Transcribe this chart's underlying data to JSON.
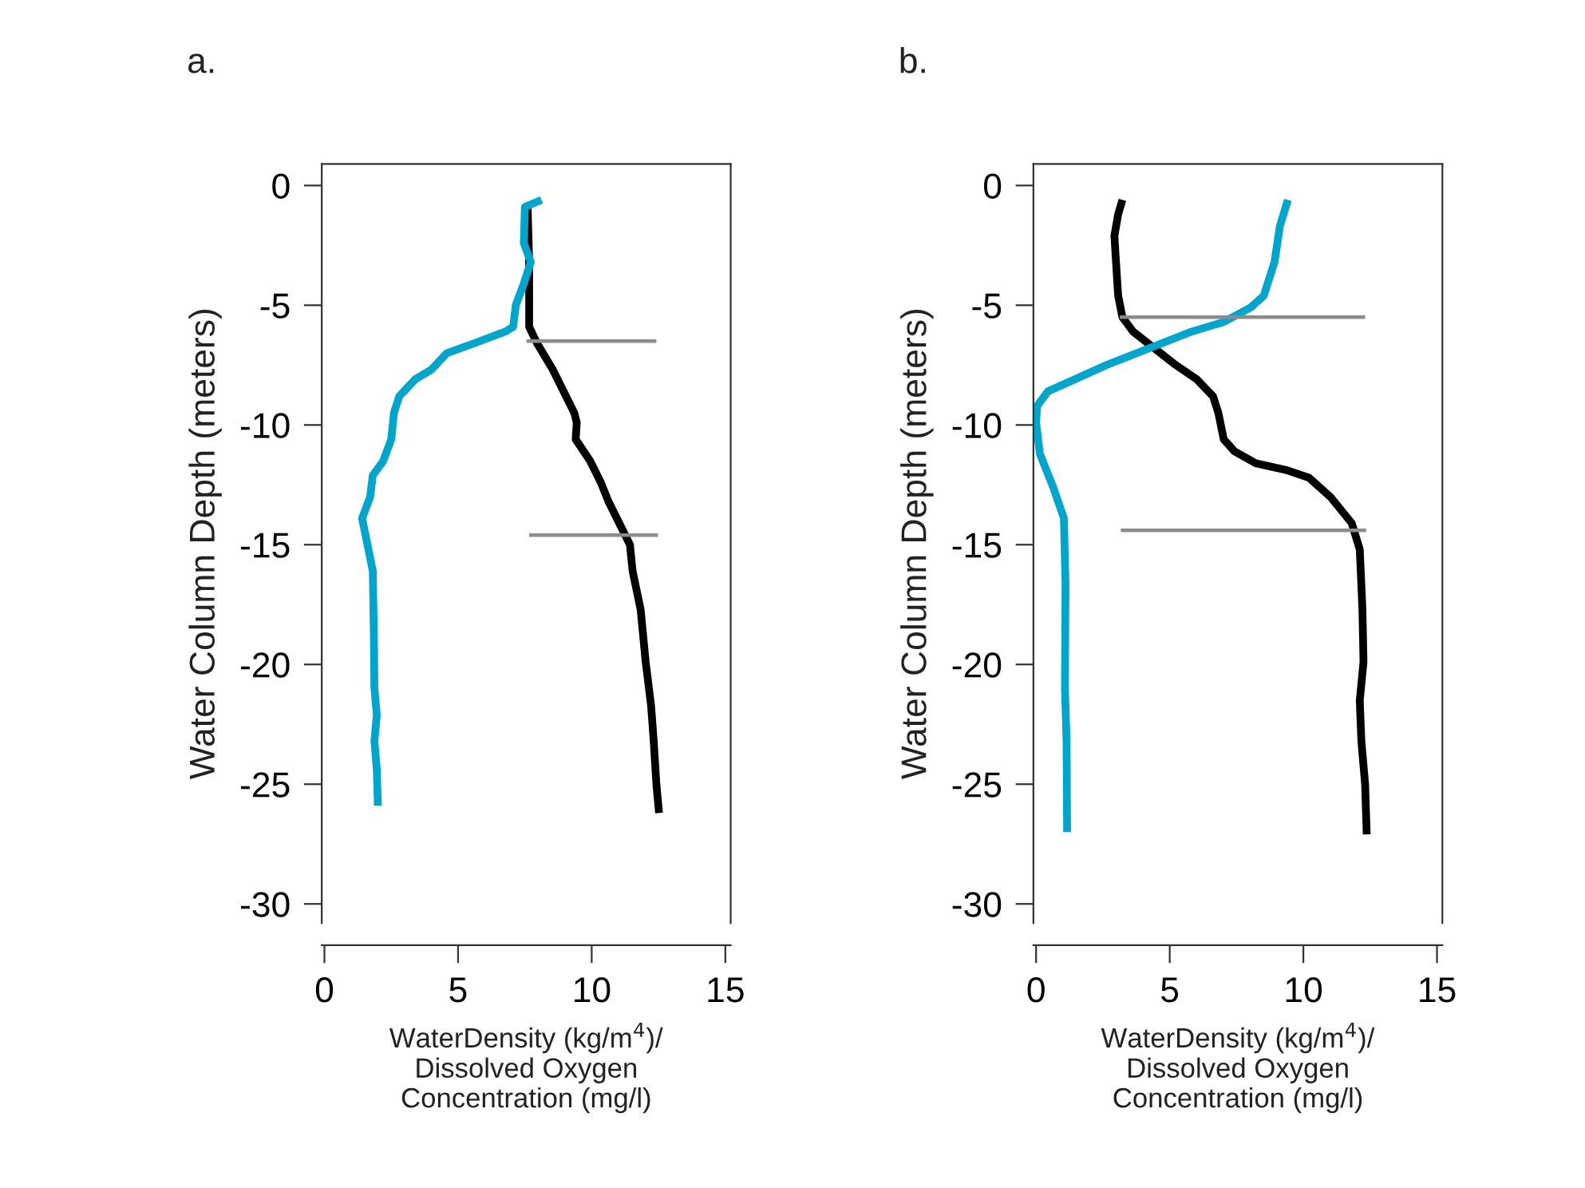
{
  "chart_data": [
    {
      "type": "line",
      "title": "a.",
      "xlabel": "WaterDensity (kg/m$^{4}$)/\nDissolved Oxygen\nConcentration (mg/l)",
      "ylabel": "Water Column Depth (meters)",
      "xlim": [
        -0.1,
        15.2
      ],
      "ylim": [
        -30.8,
        0.9
      ],
      "xticks": [
        0,
        5,
        10,
        15
      ],
      "yticks": [
        0,
        -5,
        -10,
        -15,
        -20,
        -25,
        -30
      ],
      "grid": false,
      "legend": false,
      "line_style": "solid",
      "marker": "none",
      "series": [
        {
          "color": "#000000",
          "x": [
            7.6,
            7.66,
            7.66,
            7.96,
            8.55,
            9.35,
            9.44,
            9.4,
            9.94,
            10.34,
            10.63,
            11.03,
            11.43,
            11.53,
            11.83,
            12.02,
            12.22,
            12.32,
            12.42,
            12.52
          ],
          "values": [
            -0.8,
            -3.2,
            -5.9,
            -6.6,
            -7.7,
            -9.5,
            -9.9,
            -10.6,
            -11.5,
            -12.4,
            -13.2,
            -14.1,
            -15.0,
            -16.1,
            -17.7,
            -19.9,
            -21.7,
            -23.2,
            -25.0,
            -26.2
          ]
        },
        {
          "color": "#00a5cc",
          "x": [
            8.12,
            7.5,
            7.46,
            7.72,
            7.46,
            7.16,
            7.06,
            6.77,
            5.58,
            4.58,
            3.99,
            3.39,
            2.8,
            2.6,
            2.5,
            2.2,
            1.81,
            1.71,
            1.41,
            1.61,
            1.81,
            1.85,
            1.87,
            1.96,
            1.87,
            1.96,
            2.0
          ],
          "values": [
            -0.6,
            -0.9,
            -2.4,
            -3.2,
            -4.1,
            -5.0,
            -5.9,
            -6.1,
            -6.6,
            -7.0,
            -7.7,
            -8.1,
            -8.8,
            -9.5,
            -10.6,
            -11.5,
            -12.1,
            -13.0,
            -13.9,
            -15.0,
            -16.1,
            -18.8,
            -21.0,
            -22.1,
            -23.2,
            -24.4,
            -25.9
          ]
        },
        {
          "color": "#8c8c8c",
          "x": [
            7.56,
            12.42
          ],
          "values": [
            -6.5,
            -6.5
          ]
        },
        {
          "color": "#8c8c8c",
          "x": [
            7.66,
            12.48
          ],
          "values": [
            -14.6,
            -14.6
          ]
        }
      ]
    },
    {
      "type": "line",
      "title": "b.",
      "xlabel": "WaterDensity (kg/m$^{4}$)/\nDissolved Oxygen\nConcentration (mg/l)",
      "ylabel": "Water Column Depth (meters)",
      "xlim": [
        -0.1,
        15.2
      ],
      "ylim": [
        -30.8,
        0.9
      ],
      "xticks": [
        0,
        5,
        10,
        15
      ],
      "yticks": [
        0,
        -5,
        -10,
        -15,
        -20,
        -25,
        -30
      ],
      "grid": false,
      "legend": false,
      "line_style": "solid",
      "marker": "none",
      "series": [
        {
          "color": "#000000",
          "x": [
            3.23,
            3.07,
            2.93,
            2.99,
            3.07,
            3.23,
            3.63,
            4.43,
            5.23,
            6.02,
            6.62,
            6.82,
            7.02,
            7.42,
            8.22,
            9.42,
            10.21,
            11.01,
            11.81,
            12.11,
            12.21,
            12.25,
            12.11,
            12.17,
            12.31,
            12.37
          ],
          "values": [
            -0.6,
            -1.2,
            -2.1,
            -3.2,
            -4.6,
            -5.5,
            -6.1,
            -6.8,
            -7.5,
            -8.1,
            -8.8,
            -9.5,
            -10.6,
            -11.1,
            -11.6,
            -11.9,
            -12.2,
            -13.0,
            -14.1,
            -15.2,
            -17.7,
            -19.9,
            -21.5,
            -23.2,
            -25.0,
            -27.1
          ]
        },
        {
          "color": "#00a5cc",
          "x": [
            9.42,
            9.12,
            8.92,
            8.52,
            8.02,
            7.02,
            5.82,
            4.23,
            2.63,
            1.64,
            0.44,
            0.04,
            0.0,
            0.14,
            0.64,
            1.04,
            1.1,
            1.08,
            1.14,
            1.16
          ],
          "values": [
            -0.6,
            -1.7,
            -3.2,
            -4.6,
            -5.1,
            -5.7,
            -6.1,
            -6.8,
            -7.5,
            -8.0,
            -8.6,
            -9.2,
            -9.9,
            -11.2,
            -12.6,
            -13.9,
            -16.6,
            -21.0,
            -23.2,
            -27.0
          ]
        },
        {
          "color": "#8c8c8c",
          "x": [
            3.13,
            12.31
          ],
          "values": [
            -5.5,
            -5.5
          ]
        },
        {
          "color": "#8c8c8c",
          "x": [
            3.17,
            12.35
          ],
          "values": [
            -14.4,
            -14.4
          ]
        }
      ]
    }
  ]
}
